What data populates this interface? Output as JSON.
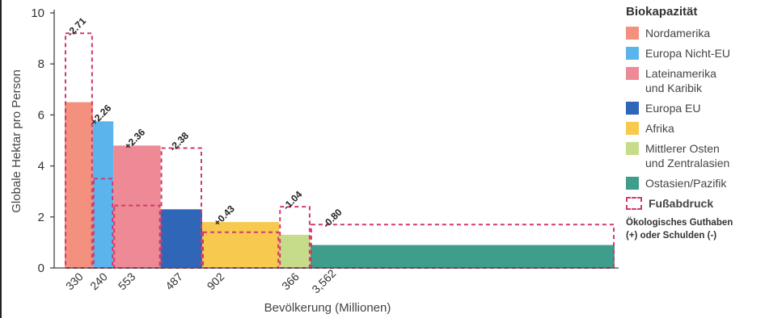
{
  "chart_data": {
    "type": "bar",
    "xlabel": "Bevölkerung (Millionen)",
    "ylabel": "Globale Hektar pro Person",
    "ylim": [
      0,
      10
    ],
    "yticks": [
      "0",
      "2",
      "4",
      "6",
      "8",
      "10"
    ],
    "grid": false,
    "legend_position": "right",
    "bar_width_encodes": "population",
    "series": [
      {
        "name": "Nordamerika",
        "population_label": "330",
        "population": 330,
        "biocapacity": 6.5,
        "footprint": 9.2,
        "balance": "-2.71",
        "color": "#f4907e"
      },
      {
        "name": "Europa Nicht-EU",
        "population_label": "240",
        "population": 240,
        "biocapacity": 5.75,
        "footprint": 3.5,
        "balance": "+2.26",
        "color": "#5bb5ec"
      },
      {
        "name": "Lateinamerika und Karibik",
        "population_label": "553",
        "population": 553,
        "biocapacity": 4.8,
        "footprint": 2.45,
        "balance": "+2.36",
        "color": "#ed8a95"
      },
      {
        "name": "Europa EU",
        "population_label": "487",
        "population": 487,
        "biocapacity": 2.3,
        "footprint": 4.7,
        "balance": "-2.38",
        "color": "#2f66b8"
      },
      {
        "name": "Afrika",
        "population_label": "902",
        "population": 902,
        "biocapacity": 1.8,
        "footprint": 1.4,
        "balance": "+0.43",
        "color": "#f7c94f"
      },
      {
        "name": "Mittlerer Osten und Zentralasien",
        "population_label": "366",
        "population": 366,
        "biocapacity": 1.3,
        "footprint": 2.4,
        "balance": "-1.04",
        "color": "#c6dc8b"
      },
      {
        "name": "Ostasien/Pazifik",
        "population_label": "3,562",
        "population": 3562,
        "biocapacity": 0.9,
        "footprint": 1.7,
        "balance": "-0.80",
        "color": "#3f9d8c"
      }
    ]
  },
  "legend": {
    "title": "Biokapazität",
    "items": [
      {
        "label": "Nordamerika",
        "color": "#f4907e"
      },
      {
        "label": "Europa Nicht-EU",
        "color": "#5bb5ec"
      },
      {
        "label": "Lateinamerika\nund Karibik",
        "color": "#ed8a95"
      },
      {
        "label": "Europa EU",
        "color": "#2f66b8"
      },
      {
        "label": "Afrika",
        "color": "#f7c94f"
      },
      {
        "label": "Mittlerer Osten\nund Zentralasien",
        "color": "#c6dc8b"
      },
      {
        "label": "Ostasien/Pazifik",
        "color": "#3f9d8c"
      }
    ],
    "footprint_label": "Fußabdruck",
    "footprint_color": "#d13a6a",
    "note": "Ökologisches Guthaben\n(+) oder Schulden (-)"
  }
}
